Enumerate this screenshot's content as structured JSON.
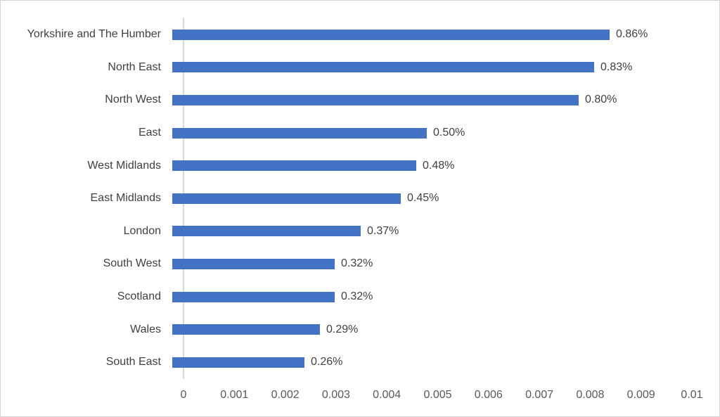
{
  "chart": {
    "colors": {
      "bar": "#4472C4",
      "category_text": "#404040",
      "value_text": "#404040",
      "tick_text": "#595959",
      "axis_line": "#D9D9D9",
      "border": "#D6D6D6",
      "background": "#FFFFFF"
    }
  },
  "chart_data": {
    "type": "bar",
    "orientation": "horizontal",
    "title": "",
    "xlabel": "",
    "ylabel": "",
    "xlim": [
      0,
      0.01
    ],
    "grid": false,
    "legend": false,
    "categories": [
      "Yorkshire and The Humber",
      "North East",
      "North West",
      "East",
      "West Midlands",
      "East Midlands",
      "London",
      "South West",
      "Scotland",
      "Wales",
      "South East"
    ],
    "values": [
      0.0086,
      0.0083,
      0.008,
      0.005,
      0.0048,
      0.0045,
      0.0037,
      0.0032,
      0.0032,
      0.0029,
      0.0026
    ],
    "data_labels": [
      "0.86%",
      "0.83%",
      "0.80%",
      "0.50%",
      "0.48%",
      "0.45%",
      "0.37%",
      "0.32%",
      "0.32%",
      "0.29%",
      "0.26%"
    ],
    "x_tick_labels": [
      "0",
      "0.001",
      "0.002",
      "0.003",
      "0.004",
      "0.005",
      "0.006",
      "0.007",
      "0.008",
      "0.009",
      "0.01"
    ]
  }
}
